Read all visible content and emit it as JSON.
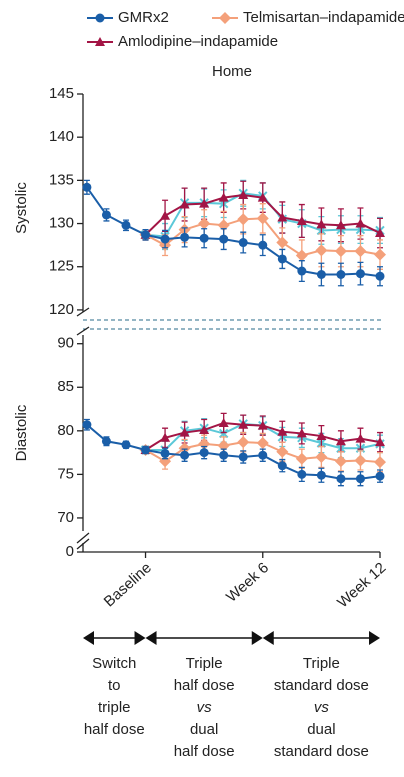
{
  "chart_data": [
    {
      "type": "line",
      "title": "Home",
      "ylabel": "Systolic",
      "x": [
        -3,
        -2,
        -1,
        0,
        1,
        2,
        3,
        4,
        5,
        6,
        7,
        8,
        9,
        10,
        11,
        12
      ],
      "xlim": [
        -3.2,
        12
      ],
      "ylim": [
        118.6,
        145
      ],
      "yticks": [
        120,
        125,
        130,
        135,
        140,
        145
      ],
      "series": [
        {
          "name": "GMRx2",
          "color": "#1a5ea8",
          "marker": "circle",
          "values": [
            134.2,
            131.0,
            129.8,
            128.7,
            128.2,
            128.4,
            128.3,
            128.2,
            127.8,
            127.5,
            125.9,
            124.5,
            124.1,
            124.1,
            124.2,
            123.9
          ],
          "errors": [
            0.8,
            0.7,
            0.6,
            0.6,
            1.0,
            1.1,
            1.1,
            1.2,
            1.2,
            1.2,
            1.1,
            1.2,
            1.3,
            1.3,
            1.3,
            1.1
          ]
        },
        {
          "name": "Telmisartan–indapamide",
          "color": "#f4a07a",
          "marker": "diamond",
          "values": [
            null,
            null,
            null,
            128.7,
            127.5,
            129.3,
            130.0,
            129.8,
            130.5,
            130.6,
            127.8,
            126.3,
            126.9,
            126.8,
            126.8,
            126.4
          ],
          "errors": [
            null,
            null,
            null,
            0.6,
            1.2,
            1.5,
            1.6,
            1.6,
            1.7,
            1.7,
            1.7,
            1.8,
            1.9,
            1.8,
            1.8,
            1.7
          ]
        },
        {
          "name": "Amlodipine–indapamide",
          "color": "#a31545",
          "marker": "triangle",
          "values": [
            null,
            null,
            null,
            128.7,
            130.9,
            132.2,
            132.3,
            133.0,
            133.3,
            133.0,
            130.7,
            130.3,
            129.9,
            129.8,
            130.0,
            128.9
          ],
          "errors": [
            null,
            null,
            null,
            0.6,
            1.8,
            1.9,
            1.8,
            1.7,
            1.6,
            1.7,
            1.8,
            1.9,
            1.9,
            1.9,
            1.8,
            1.7
          ]
        },
        {
          "color": "#5bc8d8",
          "marker": "cross",
          "values": [
            null,
            null,
            null,
            128.7,
            128.5,
            132.4,
            132.4,
            132.3,
            133.5,
            133.2,
            130.5,
            130.0,
            129.2,
            129.3,
            129.3,
            129.2
          ],
          "errors": [
            null,
            null,
            null,
            0.6,
            1.5,
            1.7,
            1.6,
            1.6,
            1.5,
            1.5,
            1.6,
            1.6,
            1.6,
            1.6,
            1.6,
            1.5
          ]
        }
      ]
    },
    {
      "type": "line",
      "ylabel": "Diastolic",
      "x": [
        -3,
        -2,
        -1,
        0,
        1,
        2,
        3,
        4,
        5,
        6,
        7,
        8,
        9,
        10,
        11,
        12
      ],
      "xlim": [
        -3.2,
        12
      ],
      "ylim": [
        68.5,
        91
      ],
      "yticks": [
        70,
        75,
        80,
        85,
        90
      ],
      "break_tick": 0,
      "xticks": [
        {
          "value": 0,
          "label": "Baseline"
        },
        {
          "value": 6,
          "label": "Week 6"
        },
        {
          "value": 12,
          "label": "Week 12"
        }
      ],
      "series": [
        {
          "color": "#1a5ea8",
          "marker": "circle",
          "values": [
            80.7,
            78.8,
            78.4,
            77.8,
            77.4,
            77.2,
            77.5,
            77.2,
            77.0,
            77.2,
            76.0,
            75.0,
            74.9,
            74.5,
            74.5,
            74.8
          ],
          "errors": [
            0.6,
            0.5,
            0.4,
            0.4,
            0.6,
            0.7,
            0.7,
            0.7,
            0.7,
            0.7,
            0.7,
            0.8,
            0.8,
            0.8,
            0.8,
            0.7
          ]
        },
        {
          "color": "#f4a07a",
          "marker": "diamond",
          "values": [
            null,
            null,
            null,
            77.8,
            76.5,
            78.0,
            78.5,
            78.3,
            78.7,
            78.6,
            77.6,
            76.8,
            77.0,
            76.5,
            76.6,
            76.4
          ],
          "errors": [
            null,
            null,
            null,
            0.4,
            0.9,
            1.0,
            1.0,
            1.0,
            1.1,
            1.1,
            1.1,
            1.1,
            1.2,
            1.1,
            1.1,
            1.1
          ]
        },
        {
          "color": "#a31545",
          "marker": "triangle",
          "values": [
            null,
            null,
            null,
            77.8,
            79.2,
            79.8,
            80.1,
            80.9,
            80.7,
            80.6,
            79.9,
            79.7,
            79.4,
            78.8,
            79.1,
            78.7
          ],
          "errors": [
            null,
            null,
            null,
            0.4,
            1.1,
            1.2,
            1.2,
            1.1,
            1.1,
            1.1,
            1.2,
            1.2,
            1.2,
            1.2,
            1.2,
            1.1
          ]
        },
        {
          "color": "#5bc8d8",
          "marker": "cross",
          "values": [
            null,
            null,
            null,
            77.8,
            77.8,
            80.0,
            80.3,
            79.7,
            80.8,
            80.6,
            79.3,
            79.2,
            78.6,
            78.0,
            78.0,
            78.5
          ],
          "errors": [
            null,
            null,
            null,
            0.4,
            1.0,
            1.1,
            1.1,
            1.0,
            1.0,
            1.0,
            1.1,
            1.1,
            1.1,
            1.1,
            1.1,
            1.0
          ]
        }
      ]
    }
  ],
  "phases": [
    {
      "lines": [
        "Switch",
        "to",
        "triple",
        "half dose"
      ]
    },
    {
      "lines": [
        "Triple",
        "half dose",
        "vs",
        "dual",
        "half dose"
      ]
    },
    {
      "lines": [
        "Triple",
        "standard dose",
        "vs",
        "dual",
        "standard dose"
      ]
    }
  ]
}
